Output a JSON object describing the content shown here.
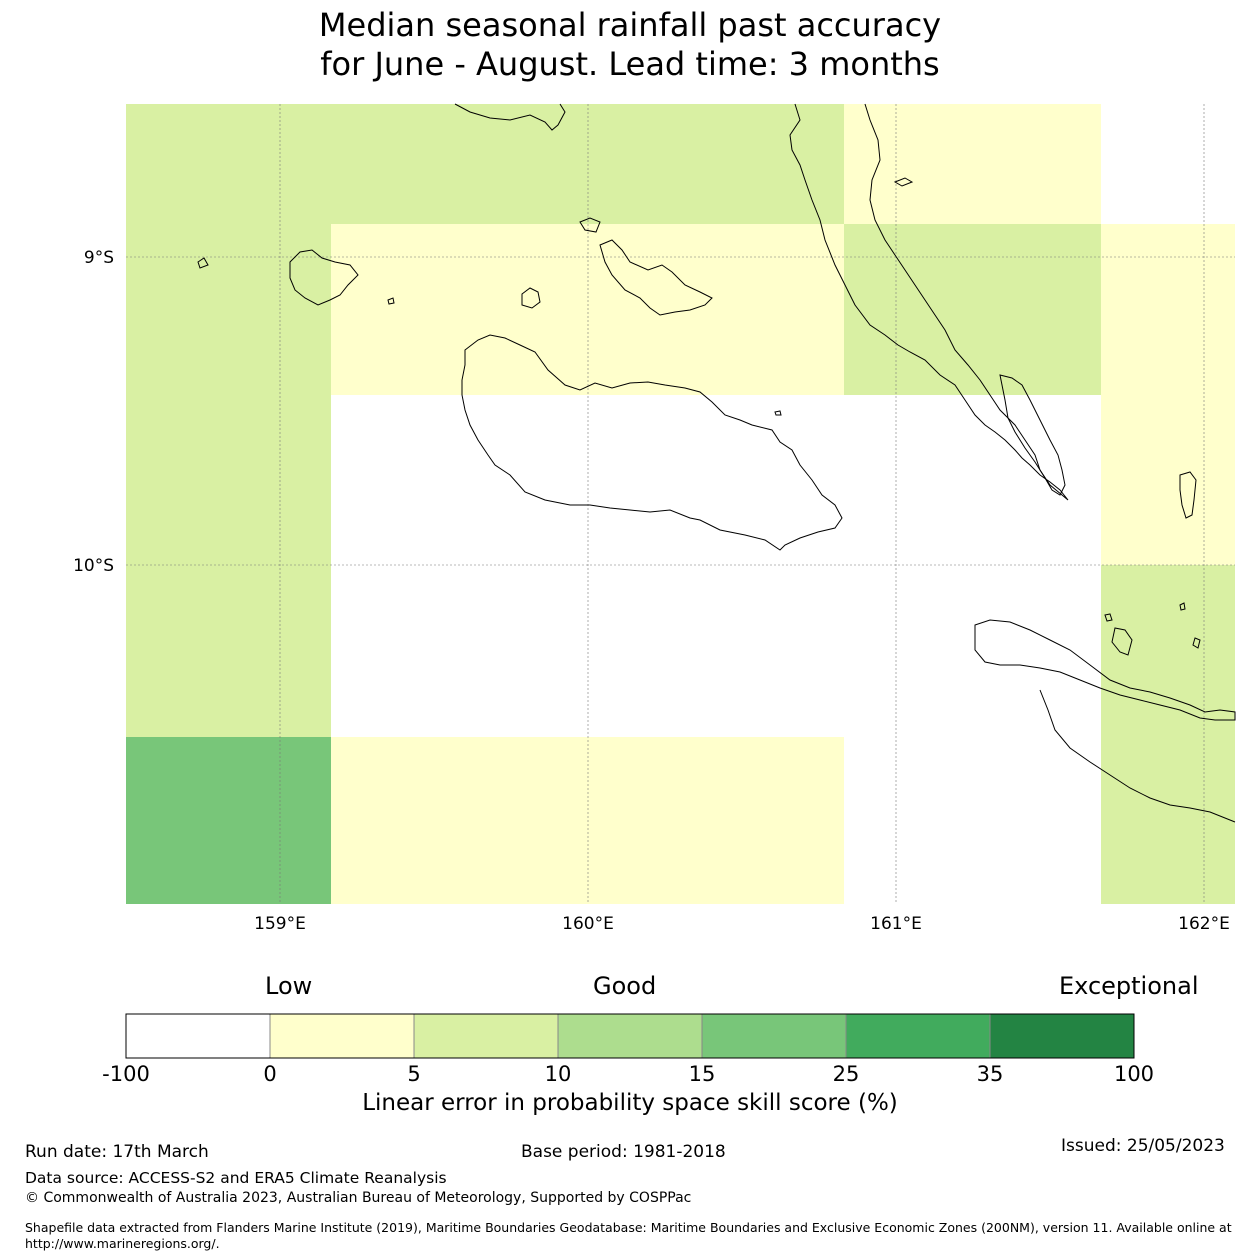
{
  "title": {
    "line1": "Median seasonal rainfall past accuracy",
    "line2": "for June - August. Lead time: 3 months"
  },
  "map": {
    "lat_labels": [
      "9°S",
      "10°S"
    ],
    "lon_labels": [
      "159°E",
      "160°E",
      "161°E",
      "162°E"
    ],
    "skill_categories": {
      "white": "#ffffff",
      "yellow": "#ffffcc",
      "lightgreen": "#d9f0a3",
      "green": "#78c679"
    }
  },
  "colorbar": {
    "categories": {
      "low": "Low",
      "good": "Good",
      "exceptional": "Exceptional"
    },
    "ticks": [
      "-100",
      "0",
      "5",
      "10",
      "15",
      "25",
      "35",
      "100"
    ],
    "colors": [
      "#ffffff",
      "#ffffcc",
      "#d9f0a3",
      "#addd8e",
      "#78c679",
      "#41ab5d",
      "#238443"
    ],
    "label": "Linear error in probability space skill score (%)"
  },
  "footer": {
    "run_date": "Run date: 17th March",
    "base_period": "Base period: 1981-2018",
    "issued": "Issued: 25/05/2023",
    "data_source": "Data source: ACCESS-S2 and ERA5 Climate Reanalysis",
    "copyright": "© Commonwealth of Australia 2023, Australian Bureau of Meteorology, Supported by COSPPac",
    "shapefile_line1": "Shapefile data extracted from Flanders Marine Institute (2019), Maritime Boundaries Geodatabase: Maritime Boundaries and Exclusive Economic Zones (200NM), version 11. Available online at",
    "shapefile_line2": "http://www.marineregions.org/."
  }
}
